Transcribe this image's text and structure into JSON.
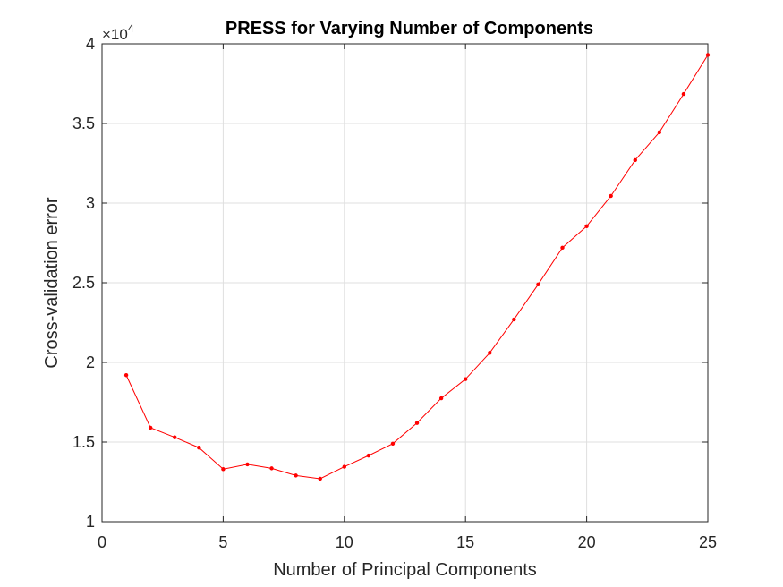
{
  "chart_data": {
    "type": "line",
    "title": "PRESS for Varying Number of Components",
    "xlabel": "Number of Principal Components",
    "ylabel": "Cross-validation error",
    "y_exponent_label": {
      "base": "×10",
      "power": "4"
    },
    "xlim": [
      0,
      25
    ],
    "ylim": [
      10000,
      40000
    ],
    "x_ticks": [
      0,
      5,
      10,
      15,
      20,
      25
    ],
    "x_tick_labels": [
      "0",
      "5",
      "10",
      "15",
      "20",
      "25"
    ],
    "y_ticks": [
      10000,
      15000,
      20000,
      25000,
      30000,
      35000,
      40000
    ],
    "y_tick_labels": [
      "1",
      "1.5",
      "2",
      "2.5",
      "3",
      "3.5",
      "4"
    ],
    "grid": true,
    "line_color": "#ff0000",
    "marker": "dot",
    "series": [
      {
        "x": [
          1,
          2,
          3,
          4,
          5,
          6,
          7,
          8,
          9,
          10,
          11,
          12,
          13,
          14,
          15,
          16,
          17,
          18,
          19,
          20,
          21,
          22,
          23,
          24,
          25
        ],
        "values": [
          19200,
          15900,
          15300,
          14650,
          13300,
          13600,
          13350,
          12900,
          12700,
          13450,
          14150,
          14900,
          16200,
          17750,
          18950,
          20600,
          22700,
          24900,
          27200,
          28550,
          30450,
          32700,
          34450,
          36850,
          39300
        ]
      }
    ]
  }
}
